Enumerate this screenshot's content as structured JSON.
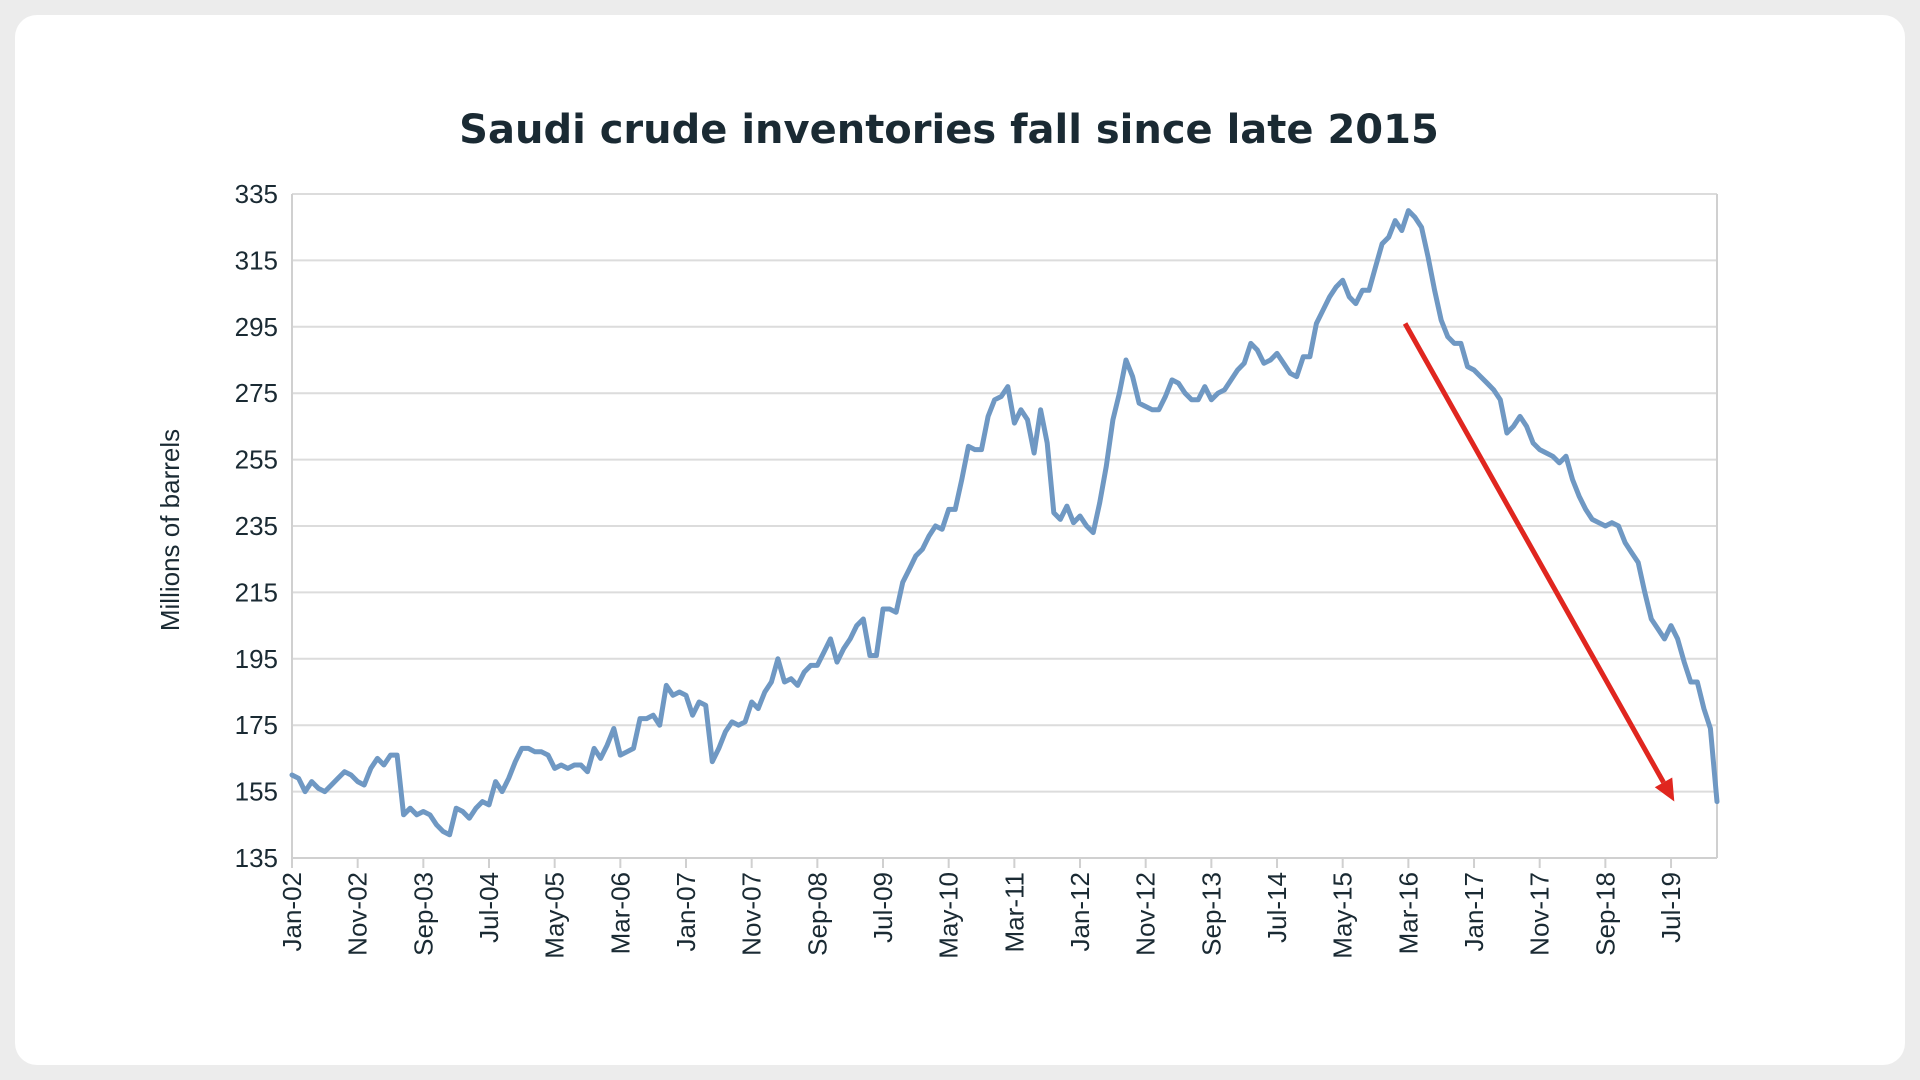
{
  "chart_data": {
    "type": "line",
    "title": "Saudi crude inventories fall since late 2015",
    "xlabel": "",
    "ylabel": "Millions of barrels",
    "ylim": [
      135,
      335
    ],
    "yticks": [
      135,
      155,
      175,
      195,
      215,
      235,
      255,
      275,
      295,
      315,
      335
    ],
    "xtick_labels": [
      "Jan-02",
      "Nov-02",
      "Sep-03",
      "Jul-04",
      "May-05",
      "Mar-06",
      "Jan-07",
      "Nov-07",
      "Sep-08",
      "Jul-09",
      "May-10",
      "Mar-11",
      "Jan-12",
      "Nov-12",
      "Sep-13",
      "Jul-14",
      "May-15",
      "Mar-16",
      "Jan-17",
      "Nov-17",
      "Sep-18",
      "Jul-19"
    ],
    "grid": true,
    "legend": "none",
    "colors": {
      "series": "#6f98c3",
      "arrow": "#e0261f",
      "grid": "#dcdcdc",
      "axis": "#d0d0d0",
      "text": "#1a2a33"
    },
    "series": [
      {
        "name": "",
        "values": [
          [
            0,
            160
          ],
          [
            1,
            159
          ],
          [
            2,
            155
          ],
          [
            3,
            158
          ],
          [
            4,
            156
          ],
          [
            5,
            155
          ],
          [
            6,
            157
          ],
          [
            7,
            159
          ],
          [
            8,
            161
          ],
          [
            9,
            160
          ],
          [
            10,
            158
          ],
          [
            11,
            157
          ],
          [
            12,
            162
          ],
          [
            13,
            165
          ],
          [
            14,
            163
          ],
          [
            15,
            166
          ],
          [
            16,
            166
          ],
          [
            17,
            148
          ],
          [
            18,
            150
          ],
          [
            19,
            148
          ],
          [
            20,
            149
          ],
          [
            21,
            148
          ],
          [
            22,
            145
          ],
          [
            23,
            143
          ],
          [
            24,
            142
          ],
          [
            25,
            150
          ],
          [
            26,
            149
          ],
          [
            27,
            147
          ],
          [
            28,
            150
          ],
          [
            29,
            152
          ],
          [
            30,
            151
          ],
          [
            31,
            158
          ],
          [
            32,
            155
          ],
          [
            33,
            159
          ],
          [
            34,
            164
          ],
          [
            35,
            168
          ],
          [
            36,
            168
          ],
          [
            37,
            167
          ],
          [
            38,
            167
          ],
          [
            39,
            166
          ],
          [
            40,
            162
          ],
          [
            41,
            163
          ],
          [
            42,
            162
          ],
          [
            43,
            163
          ],
          [
            44,
            163
          ],
          [
            45,
            161
          ],
          [
            46,
            168
          ],
          [
            47,
            165
          ],
          [
            48,
            169
          ],
          [
            49,
            174
          ],
          [
            50,
            166
          ],
          [
            51,
            167
          ],
          [
            52,
            168
          ],
          [
            53,
            177
          ],
          [
            54,
            177
          ],
          [
            55,
            178
          ],
          [
            56,
            175
          ],
          [
            57,
            187
          ],
          [
            58,
            184
          ],
          [
            59,
            185
          ],
          [
            60,
            184
          ],
          [
            61,
            178
          ],
          [
            62,
            182
          ],
          [
            63,
            181
          ],
          [
            64,
            164
          ],
          [
            65,
            168
          ],
          [
            66,
            173
          ],
          [
            67,
            176
          ],
          [
            68,
            175
          ],
          [
            69,
            176
          ],
          [
            70,
            182
          ],
          [
            71,
            180
          ],
          [
            72,
            185
          ],
          [
            73,
            188
          ],
          [
            74,
            195
          ],
          [
            75,
            188
          ],
          [
            76,
            189
          ],
          [
            77,
            187
          ],
          [
            78,
            191
          ],
          [
            79,
            193
          ],
          [
            80,
            193
          ],
          [
            81,
            197
          ],
          [
            82,
            201
          ],
          [
            83,
            194
          ],
          [
            84,
            198
          ],
          [
            85,
            201
          ],
          [
            86,
            205
          ],
          [
            87,
            207
          ],
          [
            88,
            196
          ],
          [
            89,
            196
          ],
          [
            90,
            210
          ],
          [
            91,
            210
          ],
          [
            92,
            209
          ],
          [
            93,
            218
          ],
          [
            94,
            222
          ],
          [
            95,
            226
          ],
          [
            96,
            228
          ],
          [
            97,
            232
          ],
          [
            98,
            235
          ],
          [
            99,
            234
          ],
          [
            100,
            240
          ],
          [
            101,
            240
          ],
          [
            102,
            249
          ],
          [
            103,
            259
          ],
          [
            104,
            258
          ],
          [
            105,
            258
          ],
          [
            106,
            268
          ],
          [
            107,
            273
          ],
          [
            108,
            274
          ],
          [
            109,
            277
          ],
          [
            110,
            266
          ],
          [
            111,
            270
          ],
          [
            112,
            267
          ],
          [
            113,
            257
          ],
          [
            114,
            270
          ],
          [
            115,
            260
          ],
          [
            116,
            239
          ],
          [
            117,
            237
          ],
          [
            118,
            241
          ],
          [
            119,
            236
          ],
          [
            120,
            238
          ],
          [
            121,
            235
          ],
          [
            122,
            233
          ],
          [
            123,
            242
          ],
          [
            124,
            253
          ],
          [
            125,
            267
          ],
          [
            126,
            275
          ],
          [
            127,
            285
          ],
          [
            128,
            280
          ],
          [
            129,
            272
          ],
          [
            130,
            271
          ],
          [
            131,
            270
          ],
          [
            132,
            270
          ],
          [
            133,
            274
          ],
          [
            134,
            279
          ],
          [
            135,
            278
          ],
          [
            136,
            275
          ],
          [
            137,
            273
          ],
          [
            138,
            273
          ],
          [
            139,
            277
          ],
          [
            140,
            273
          ],
          [
            141,
            275
          ],
          [
            142,
            276
          ],
          [
            143,
            279
          ],
          [
            144,
            282
          ],
          [
            145,
            284
          ],
          [
            146,
            290
          ],
          [
            147,
            288
          ],
          [
            148,
            284
          ],
          [
            149,
            285
          ],
          [
            150,
            287
          ],
          [
            151,
            284
          ],
          [
            152,
            281
          ],
          [
            153,
            280
          ],
          [
            154,
            286
          ],
          [
            155,
            286
          ],
          [
            156,
            296
          ],
          [
            157,
            300
          ],
          [
            158,
            304
          ],
          [
            159,
            307
          ],
          [
            160,
            309
          ],
          [
            161,
            304
          ],
          [
            162,
            302
          ],
          [
            163,
            306
          ],
          [
            164,
            306
          ],
          [
            165,
            313
          ],
          [
            166,
            320
          ],
          [
            167,
            322
          ],
          [
            168,
            327
          ],
          [
            169,
            324
          ],
          [
            170,
            330
          ],
          [
            171,
            328
          ],
          [
            172,
            325
          ],
          [
            173,
            316
          ],
          [
            174,
            306
          ],
          [
            175,
            297
          ],
          [
            176,
            292
          ],
          [
            177,
            290
          ],
          [
            178,
            290
          ],
          [
            179,
            283
          ],
          [
            180,
            282
          ],
          [
            181,
            280
          ],
          [
            182,
            278
          ],
          [
            183,
            276
          ],
          [
            184,
            273
          ],
          [
            185,
            263
          ],
          [
            186,
            265
          ],
          [
            187,
            268
          ],
          [
            188,
            265
          ],
          [
            189,
            260
          ],
          [
            190,
            258
          ],
          [
            191,
            257
          ],
          [
            192,
            256
          ],
          [
            193,
            254
          ],
          [
            194,
            256
          ],
          [
            195,
            249
          ],
          [
            196,
            244
          ],
          [
            197,
            240
          ],
          [
            198,
            237
          ],
          [
            199,
            236
          ],
          [
            200,
            235
          ],
          [
            201,
            236
          ],
          [
            202,
            235
          ],
          [
            203,
            230
          ],
          [
            204,
            227
          ],
          [
            205,
            224
          ],
          [
            206,
            215
          ],
          [
            207,
            207
          ],
          [
            208,
            204
          ],
          [
            209,
            201
          ],
          [
            210,
            205
          ],
          [
            211,
            201
          ],
          [
            212,
            194
          ],
          [
            213,
            188
          ],
          [
            214,
            188
          ],
          [
            215,
            180
          ],
          [
            216,
            174
          ],
          [
            217,
            152
          ]
        ]
      }
    ],
    "x_index_range": [
      0,
      217
    ],
    "xtick_indices": [
      0,
      10,
      20,
      30,
      40,
      50,
      60,
      70,
      80,
      90,
      100,
      110,
      120,
      130,
      140,
      150,
      160,
      170,
      180,
      190,
      200,
      210
    ],
    "annotation": {
      "type": "arrow",
      "from": [
        169.5,
        296
      ],
      "to": [
        210.5,
        152
      ]
    }
  }
}
